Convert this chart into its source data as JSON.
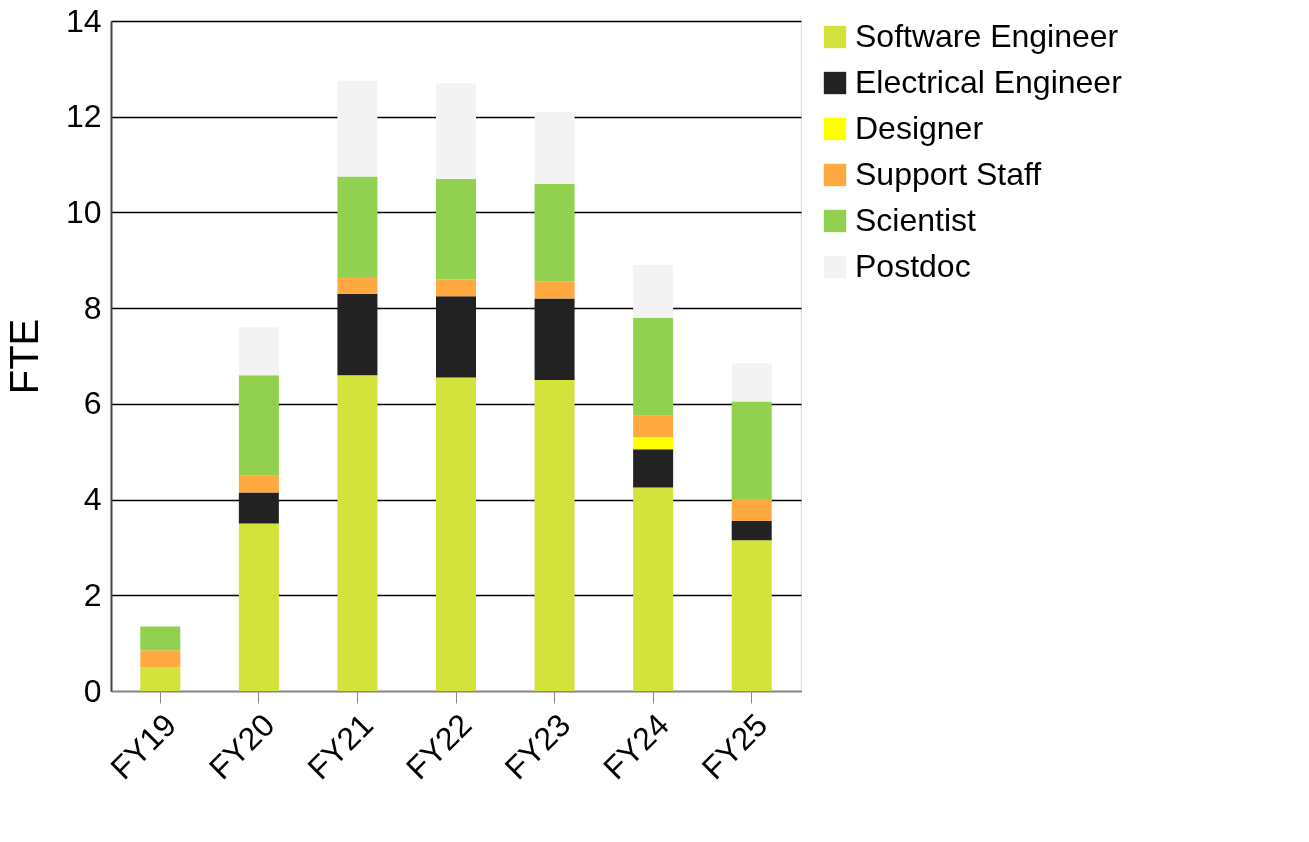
{
  "chart_data": {
    "type": "bar",
    "stacked": true,
    "ylabel": "FTE",
    "categories": [
      "FY19",
      "FY20",
      "FY21",
      "FY22",
      "FY23",
      "FY24",
      "FY25"
    ],
    "series": [
      {
        "name": "Software Engineer",
        "color": "#d4e23c",
        "values": [
          0.5,
          3.5,
          6.6,
          6.55,
          6.5,
          4.25,
          3.15
        ]
      },
      {
        "name": "Electrical Engineer",
        "color": "#222222",
        "values": [
          0,
          0.65,
          1.7,
          1.7,
          1.7,
          0.8,
          0.4
        ]
      },
      {
        "name": "Designer",
        "color": "#ffff00",
        "values": [
          0,
          0,
          0,
          0,
          0,
          0.25,
          0
        ]
      },
      {
        "name": "Support Staff",
        "color": "#ffa940",
        "values": [
          0.35,
          0.35,
          0.35,
          0.35,
          0.35,
          0.45,
          0.45
        ]
      },
      {
        "name": "Scientist",
        "color": "#92d050",
        "values": [
          0.5,
          2.1,
          2.1,
          2.1,
          2.05,
          2.05,
          2.05
        ]
      },
      {
        "name": "Postdoc",
        "color": "#f3f3f3",
        "values": [
          0,
          1.0,
          2.0,
          2.0,
          1.5,
          1.1,
          0.8
        ]
      }
    ],
    "ylim": [
      0,
      14
    ],
    "yticks": [
      0,
      2,
      4,
      6,
      8,
      10,
      12,
      14
    ],
    "grid": "y",
    "legend": "right"
  }
}
